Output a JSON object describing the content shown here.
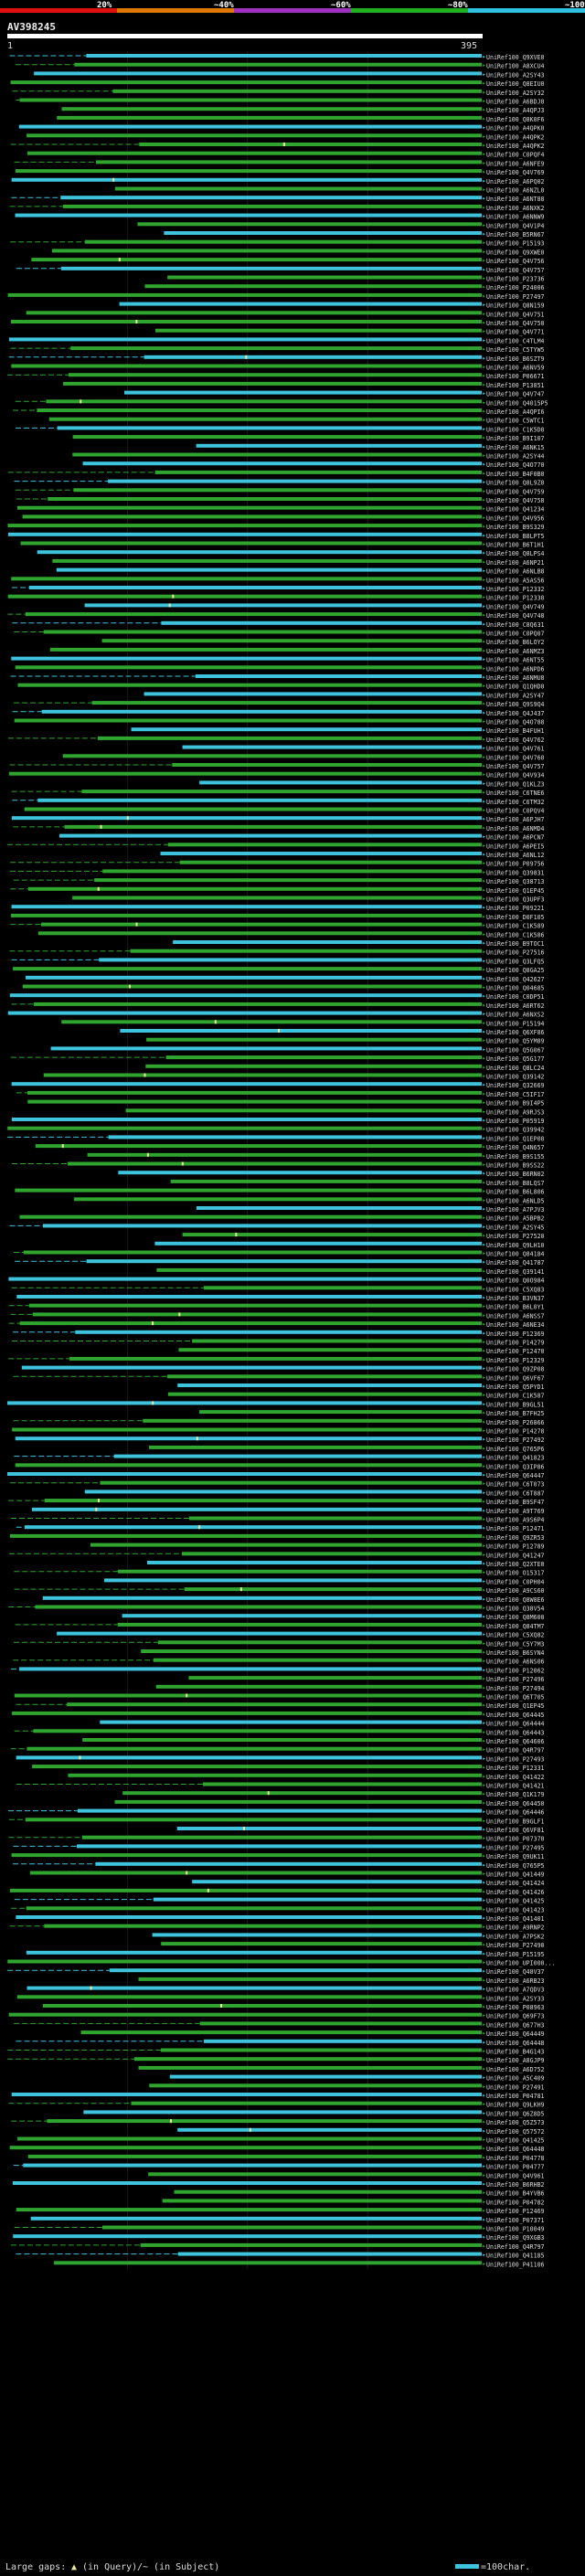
{
  "chart_data": {
    "type": "alignment_overview",
    "title": "AV398245",
    "scale": {
      "start_label": "1",
      "end_label": "395"
    },
    "identity_legend": {
      "labels": [
        "20%",
        "40%",
        "60%",
        "80%",
        "100%"
      ],
      "colors": [
        "#e01010",
        "#e07800",
        "#a030c0",
        "#20b020",
        "#30c0e0"
      ]
    },
    "row_colors": {
      "cyan": "#3ec3dc",
      "green": "#2fa52f",
      "gap": "#e8e8a0"
    },
    "hits": [
      "UniRef100_Q9XVE0",
      "UniRef100_A8XCU4",
      "UniRef100_A2SY43",
      "UniRef100_Q8EIU0",
      "UniRef100_A2SY32",
      "UniRef100_A6BDJ0",
      "UniRef100_A4QPJ3",
      "UniRef100_Q8K0F6",
      "UniRef100_A4QPK0",
      "UniRef100_A4QPK2",
      "UniRef100_A4QPK2",
      "UniRef100_C0PQF4",
      "UniRef100_A6NFE9",
      "UniRef100_Q4V769",
      "UniRef100_A6PQ02",
      "UniRef100_A6NZL0",
      "UniRef100_A6NT88",
      "UniRef100_A6NXK2",
      "UniRef100_A6NNW9",
      "UniRef100_Q4V1P4",
      "UniRef100_B5RN67",
      "UniRef100_P15193",
      "UniRef100_Q9XWE0",
      "UniRef100_Q4V756",
      "UniRef100_Q4V757",
      "UniRef100_P23736",
      "UniRef100_P24006",
      "UniRef100_P27497",
      "UniRef100_Q8N159",
      "UniRef100_Q4V751",
      "UniRef100_Q4V750",
      "UniRef100_Q4V771",
      "UniRef100_C4TLM4",
      "UniRef100_C5TYW5",
      "UniRef100_B6SZT9",
      "UniRef100_A6NV59",
      "UniRef100_P06671",
      "UniRef100_P13851",
      "UniRef100_Q4V747",
      "UniRef100_Q4015P5",
      "UniRef100_A4QPI6",
      "UniRef100_C5WTC1",
      "UniRef100_C1K5D0",
      "UniRef100_B9I107",
      "UniRef100_A6NK15",
      "UniRef100_A2SY44",
      "UniRef100_Q4O770",
      "UniRef100_B4F0B0",
      "UniRef100_Q8L9Z0",
      "UniRef100_Q4V759",
      "UniRef100_Q4V758",
      "UniRef100_Q41234",
      "UniRef100_Q4V956",
      "UniRef100_B9S329",
      "UniRef100_B8LPT5",
      "UniRef100_B6T1H1",
      "UniRef100_Q8LPS4",
      "UniRef100_A6NP21",
      "UniRef100_A6NLB8",
      "UniRef100_A5AS56",
      "UniRef100_P12332",
      "UniRef100_P12330",
      "UniRef100_Q4V749",
      "UniRef100_Q4V748",
      "UniRef100_C8Q631",
      "UniRef100_C0PQ07",
      "UniRef100_B6LOY2",
      "UniRef100_A6NMZ3",
      "UniRef100_A6NT55",
      "UniRef100_A6NPD6",
      "UniRef100_A6NMU8",
      "UniRef100_Q1QHD0",
      "UniRef100_A2SY47",
      "UniRef100_Q9S9Q4",
      "UniRef100_Q4J437",
      "UniRef100_Q4O788",
      "UniRef100_B4FUH1",
      "UniRef100_Q4V762",
      "UniRef100_Q4V761",
      "UniRef100_Q4V760",
      "UniRef100_Q4V757",
      "UniRef100_Q4V934",
      "UniRef100_Q1KLZ3",
      "UniRef100_C6TNE6",
      "UniRef100_C6TM32",
      "UniRef100_C0PQV4",
      "UniRef100_A6PJH7",
      "UniRef100_A6NMD4",
      "UniRef100_A6PCN7",
      "UniRef100_A6PEI5",
      "UniRef100_A6NL12",
      "UniRef100_P09756",
      "UniRef100_Q39831",
      "UniRef100_Q38713",
      "UniRef100_Q1EP45",
      "UniRef100_Q3UPF3",
      "UniRef100_P09221",
      "UniRef100_D0F105",
      "UniRef100_C1K589",
      "UniRef100_C1K586",
      "UniRef100_B9TOC1",
      "UniRef100_P27516",
      "UniRef100_Q3LFQ5",
      "UniRef100_Q8GA25",
      "UniRef100_Q42627",
      "UniRef100_Q04685",
      "UniRef100_C0DP51",
      "UniRef100_A6RT62",
      "UniRef100_A6NXS2",
      "UniRef100_P15194",
      "UniRef100_Q6XF86",
      "UniRef100_Q5YM89",
      "UniRef100_Q5G067",
      "UniRef100_Q5G177",
      "UniRef100_Q8LC24",
      "UniRef100_Q39142",
      "UniRef100_Q32669",
      "UniRef100_C5IF17",
      "UniRef100_B9I4P5",
      "UniRef100_A9RJS3",
      "UniRef100_P05919",
      "UniRef100_Q39942",
      "UniRef100_Q1EP00",
      "UniRef100_Q4N657",
      "UniRef100_B9S155",
      "UniRef100_B9SS22",
      "UniRef100_B6RN02",
      "UniRef100_B8LQS7",
      "UniRef100_B6L806",
      "UniRef100_A6NLD5",
      "UniRef100_A7PJV3",
      "UniRef100_A5BPB2",
      "UniRef100_A2SY45",
      "UniRef100_P27520",
      "UniRef100_Q9LH10",
      "UniRef100_Q84184",
      "UniRef100_Q41787",
      "UniRef100_Q39141",
      "UniRef100_Q0O984",
      "UniRef100_C5XQ83",
      "UniRef100_B3VN37",
      "UniRef100_B6L0Y1",
      "UniRef100_A6NSS7",
      "UniRef100_A6NE34",
      "UniRef100_P12369",
      "UniRef100_P14279",
      "UniRef100_P12470",
      "UniRef100_P12329",
      "UniRef100_Q9ZP08",
      "UniRef100_Q6VF67",
      "UniRef100_Q5PYD1",
      "UniRef100_C1K587",
      "UniRef100_B9GL51",
      "UniRef100_B7FH25",
      "UniRef100_P26866",
      "UniRef100_P14278",
      "UniRef100_P27492",
      "UniRef100_Q765P6",
      "UniRef100_Q41823",
      "UniRef100_Q3IP86",
      "UniRef100_Q64447",
      "UniRef100_C6T073",
      "UniRef100_C6T887",
      "UniRef100_B9SF47",
      "UniRef100_A9T769",
      "UniRef100_A9S6P4",
      "UniRef100_P12471",
      "UniRef100_Q9ZR53",
      "UniRef100_P12789",
      "UniRef100_Q41247",
      "UniRef100_Q2XTE0",
      "UniRef100_O15317",
      "UniRef100_C0PH04",
      "UniRef100_A9CS60",
      "UniRef100_Q8W8E6",
      "UniRef100_Q38V54",
      "UniRef100_Q8M600",
      "UniRef100_Q84TM7",
      "UniRef100_C5XQ82",
      "UniRef100_C5Y7M3",
      "UniRef100_B6SYN4",
      "UniRef100_A6NS06",
      "UniRef100_P12062",
      "UniRef100_P27496",
      "UniRef100_P27494",
      "UniRef100_Q6T705",
      "UniRef100_Q1EP45",
      "UniRef100_Q64445",
      "UniRef100_Q64444",
      "UniRef100_Q64443",
      "UniRef100_Q64606",
      "UniRef100_Q4R797",
      "UniRef100_P27493",
      "UniRef100_P12331",
      "UniRef100_Q41422",
      "UniRef100_Q41421",
      "UniRef100_Q1K179",
      "UniRef100_Q64450",
      "UniRef100_Q64446",
      "UniRef100_B9GLF1",
      "UniRef100_Q6VF81",
      "UniRef100_P07370",
      "UniRef100_P27495",
      "UniRef100_Q9UK11",
      "UniRef100_Q765P5",
      "UniRef100_Q41449",
      "UniRef100_Q41424",
      "UniRef100_Q41426",
      "UniRef100_Q41425",
      "UniRef100_Q41423",
      "UniRef100_Q41401",
      "UniRef100_A9RNP2",
      "UniRef100_A7PSK2",
      "UniRef100_P27490",
      "UniRef100_P15195",
      "UniRef100_UPI000...",
      "UniRef100_Q48V37",
      "UniRef100_A6RB23",
      "UniRef100_A7QDV3",
      "UniRef100_A2SY33",
      "UniRef100_P08963",
      "UniRef100_Q69F73",
      "UniRef100_Q677H3",
      "UniRef100_Q64449",
      "UniRef100_Q64448",
      "UniRef100_B4G143",
      "UniRef100_A8GJP9",
      "UniRef100_A6D752",
      "UniRef100_A5C409",
      "UniRef100_P27491",
      "UniRef100_P04781",
      "UniRef100_Q9LKH9",
      "UniRef100_Q6Z8D5",
      "UniRef100_Q5Z573",
      "UniRef100_Q57572",
      "UniRef100_Q41425",
      "UniRef100_Q64448",
      "UniRef100_P04778",
      "UniRef100_P04777",
      "UniRef100_Q4V961",
      "UniRef100_B6RHB2",
      "UniRef100_B4YVB6",
      "UniRef100_P04782",
      "UniRef100_P12469",
      "UniRef100_P07371",
      "UniRef100_P10049",
      "UniRef100_Q9XGB3",
      "UniRef100_Q4R797",
      "UniRef100_Q41185",
      "UniRef100_P41106"
    ]
  },
  "footer": {
    "large_gaps_label": "Large gaps:",
    "gap_query_legend": "(in Query)",
    "gap_subject_legend": "/~ (in Subject)",
    "scale_legend": "=100char."
  }
}
